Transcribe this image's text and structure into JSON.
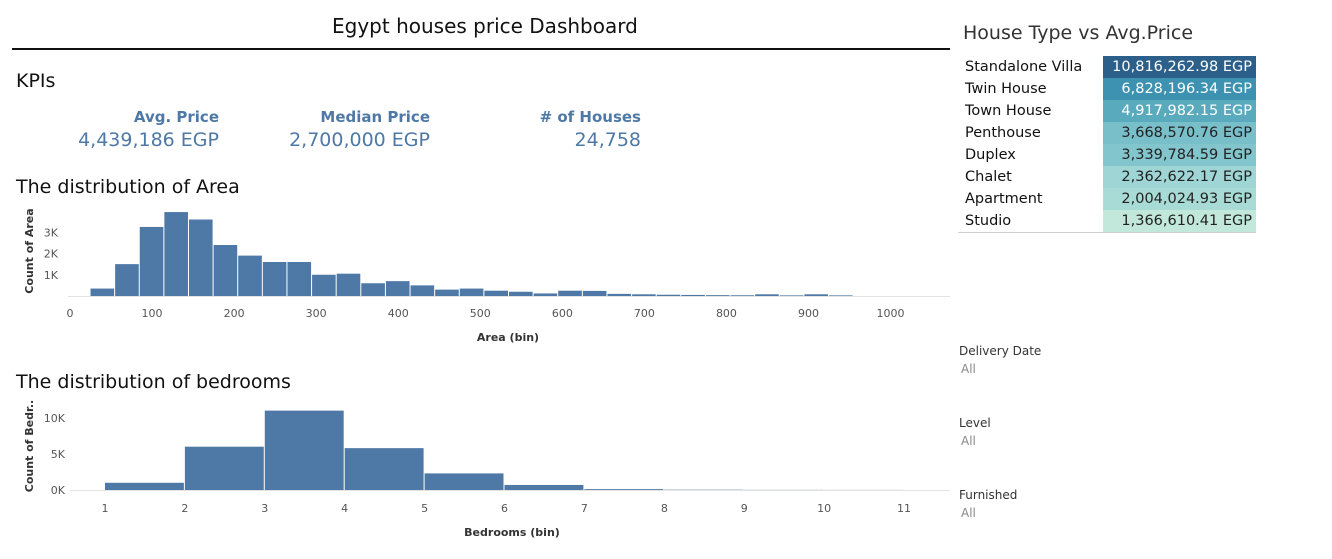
{
  "dashboard": {
    "title": "Egypt houses price Dashboard"
  },
  "kpis": {
    "section_title": "KPIs",
    "items": [
      {
        "label": "Avg. Price",
        "value": "4,439,186 EGP"
      },
      {
        "label": "Median Price",
        "value": "2,700,000 EGP"
      },
      {
        "label": "# of Houses",
        "value": "24,758"
      }
    ]
  },
  "area_chart": {
    "section_title": "The distribution of Area"
  },
  "bedrooms_chart": {
    "section_title": "The distribution of bedrooms"
  },
  "house_type": {
    "title": "House Type vs Avg.Price",
    "rows": [
      {
        "type": "Standalone Villa",
        "price": "10,816,262.98 EGP",
        "color": "#2c5f8a",
        "text_color": "#ffffff"
      },
      {
        "type": "Twin House",
        "price": "6,828,196.34 EGP",
        "color": "#3c92b0",
        "text_color": "#ffffff"
      },
      {
        "type": "Town House",
        "price": "4,917,982.15 EGP",
        "color": "#5aaabd",
        "text_color": "#ffffff"
      },
      {
        "type": "Penthouse",
        "price": "3,668,570.76 EGP",
        "color": "#79bfc9",
        "text_color": "#222222"
      },
      {
        "type": "Duplex",
        "price": "3,339,784.59 EGP",
        "color": "#83c5cc",
        "text_color": "#222222"
      },
      {
        "type": "Chalet",
        "price": "2,362,622.17 EGP",
        "color": "#9fd5d5",
        "text_color": "#222222"
      },
      {
        "type": "Apartment",
        "price": "2,004,024.93 EGP",
        "color": "#a8dad6",
        "text_color": "#222222"
      },
      {
        "type": "Studio",
        "price": "1,366,610.41 EGP",
        "color": "#c2e8dc",
        "text_color": "#222222"
      }
    ]
  },
  "filters": [
    {
      "label": "Delivery Date",
      "value": "All"
    },
    {
      "label": "Level",
      "value": "All"
    },
    {
      "label": "Furnished",
      "value": "All"
    }
  ],
  "chart_data": [
    {
      "type": "bar",
      "title": "The distribution of Area",
      "xlabel": "Area (bin)",
      "ylabel": "Count of Area",
      "bar_color": "#4e79a7",
      "bin_width": 30,
      "xlim": [
        0,
        1070
      ],
      "ylim": [
        0,
        4000
      ],
      "x_ticks": [
        0,
        100,
        200,
        300,
        400,
        500,
        600,
        700,
        800,
        900,
        1000
      ],
      "y_ticks": [
        {
          "value": 1000,
          "label": "1K"
        },
        {
          "value": 2000,
          "label": "2K"
        },
        {
          "value": 3000,
          "label": "3K"
        }
      ],
      "bins": [
        {
          "start": 25,
          "value": 350
        },
        {
          "start": 55,
          "value": 1500
        },
        {
          "start": 85,
          "value": 3250
        },
        {
          "start": 115,
          "value": 3950
        },
        {
          "start": 145,
          "value": 3600
        },
        {
          "start": 175,
          "value": 2400
        },
        {
          "start": 205,
          "value": 1900
        },
        {
          "start": 235,
          "value": 1600
        },
        {
          "start": 265,
          "value": 1600
        },
        {
          "start": 295,
          "value": 1000
        },
        {
          "start": 325,
          "value": 1050
        },
        {
          "start": 355,
          "value": 600
        },
        {
          "start": 385,
          "value": 700
        },
        {
          "start": 415,
          "value": 500
        },
        {
          "start": 445,
          "value": 300
        },
        {
          "start": 475,
          "value": 350
        },
        {
          "start": 505,
          "value": 250
        },
        {
          "start": 535,
          "value": 200
        },
        {
          "start": 565,
          "value": 120
        },
        {
          "start": 595,
          "value": 250
        },
        {
          "start": 625,
          "value": 240
        },
        {
          "start": 655,
          "value": 100
        },
        {
          "start": 685,
          "value": 80
        },
        {
          "start": 715,
          "value": 60
        },
        {
          "start": 745,
          "value": 50
        },
        {
          "start": 775,
          "value": 40
        },
        {
          "start": 805,
          "value": 35
        },
        {
          "start": 835,
          "value": 80
        },
        {
          "start": 865,
          "value": 30
        },
        {
          "start": 895,
          "value": 80
        },
        {
          "start": 925,
          "value": 30
        }
      ]
    },
    {
      "type": "bar",
      "title": "The distribution of bedrooms",
      "xlabel": "Bedrooms (bin)",
      "ylabel": "Count of Bedr..",
      "bar_color": "#4e79a7",
      "bin_width": 1,
      "xlim": [
        0.55,
        11.5
      ],
      "ylim": [
        0,
        11500
      ],
      "x_ticks": [
        1,
        2,
        3,
        4,
        5,
        6,
        7,
        8,
        9,
        10,
        11
      ],
      "y_ticks": [
        {
          "value": 0,
          "label": "0K"
        },
        {
          "value": 5000,
          "label": "5K"
        },
        {
          "value": 10000,
          "label": "10K"
        }
      ],
      "bins": [
        {
          "start": 1,
          "value": 1000
        },
        {
          "start": 2,
          "value": 6000
        },
        {
          "start": 3,
          "value": 11000
        },
        {
          "start": 4,
          "value": 5800
        },
        {
          "start": 5,
          "value": 2300
        },
        {
          "start": 6,
          "value": 700
        },
        {
          "start": 7,
          "value": 120
        },
        {
          "start": 8,
          "value": 40
        },
        {
          "start": 9,
          "value": 20
        },
        {
          "start": 10,
          "value": 10
        }
      ]
    }
  ]
}
